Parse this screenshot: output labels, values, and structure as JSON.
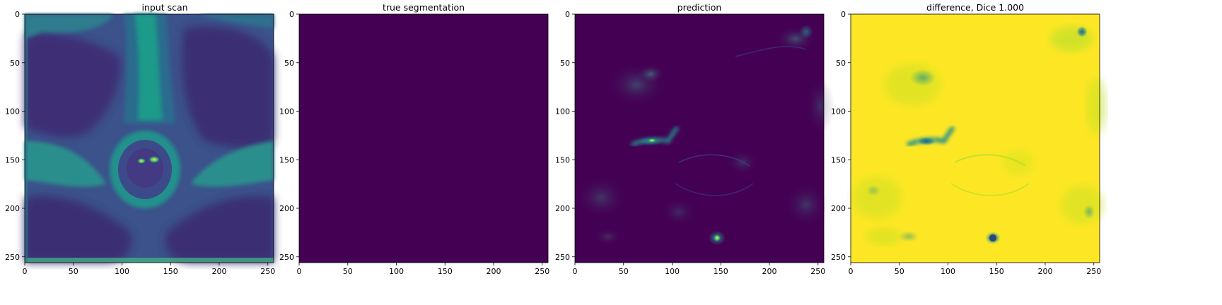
{
  "panels": [
    {
      "title": "input scan",
      "colormap": "viridis",
      "xticks": [
        "0",
        "50",
        "100",
        "150",
        "200",
        "250"
      ],
      "yticks": [
        "0",
        "50",
        "100",
        "150",
        "200",
        "250"
      ]
    },
    {
      "title": "true segmentation",
      "colormap": "viridis",
      "xticks": [
        "0",
        "50",
        "100",
        "150",
        "200",
        "250"
      ],
      "yticks": [
        "0",
        "50",
        "100",
        "150",
        "200",
        "250"
      ]
    },
    {
      "title": "prediction",
      "colormap": "viridis",
      "xticks": [
        "0",
        "50",
        "100",
        "150",
        "200",
        "250"
      ],
      "yticks": [
        "0",
        "50",
        "100",
        "150",
        "200",
        "250"
      ]
    },
    {
      "title": "difference, Dice 1.000",
      "colormap": "viridis",
      "xticks": [
        "0",
        "50",
        "100",
        "150",
        "200",
        "250"
      ],
      "yticks": [
        "0",
        "50",
        "100",
        "150",
        "200",
        "250"
      ]
    }
  ],
  "colors": {
    "viridis_low": "#440154",
    "viridis_teal": "#21918c",
    "viridis_green": "#35b779",
    "viridis_high": "#fde725"
  }
}
